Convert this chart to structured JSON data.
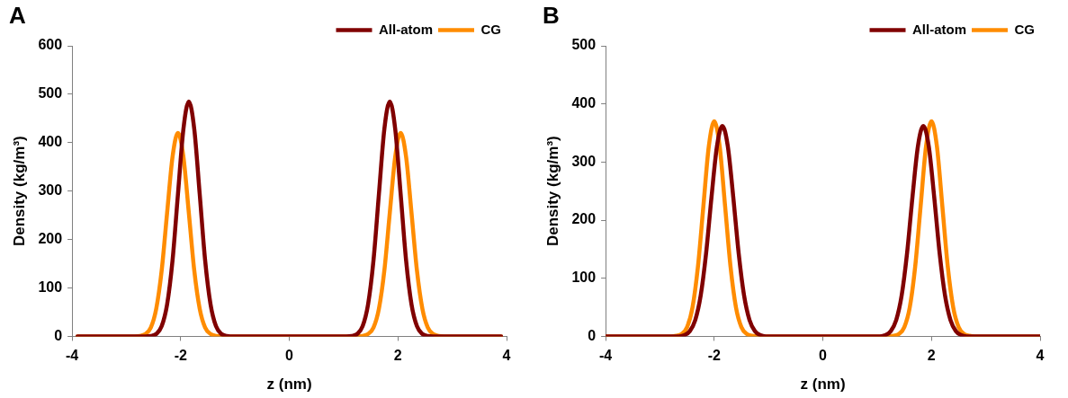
{
  "chart_data": [
    {
      "type": "line",
      "annotations": [
        "A"
      ],
      "xlabel": "z (nm)",
      "ylabel": "Density (kg/m³)",
      "xlim": [
        -4,
        4
      ],
      "xticks": [
        -4,
        -2,
        0,
        2,
        4
      ],
      "ylim": [
        0,
        600
      ],
      "yticks": [
        0,
        100,
        200,
        300,
        400,
        500,
        600
      ],
      "grid": false,
      "legend": "top right",
      "marker": "none",
      "line_style": "solid",
      "series": [
        {
          "name": "All-atom",
          "color": "#800000",
          "x": [
            -3.9,
            -2.65,
            -2.55,
            -2.45,
            -2.35,
            -2.25,
            -2.15,
            -2.05,
            -1.95,
            -1.85,
            -1.75,
            -1.65,
            -1.55,
            -1.45,
            -1.35,
            -1.25,
            -1.15,
            -1.05,
            0,
            1.05,
            1.15,
            1.25,
            1.35,
            1.45,
            1.55,
            1.65,
            1.75,
            1.85,
            1.95,
            2.05,
            2.15,
            2.25,
            2.35,
            2.45,
            2.55,
            2.65,
            3.9
          ],
          "values": [
            0,
            0,
            1,
            5,
            21,
            66,
            157,
            294,
            428,
            485,
            428,
            294,
            157,
            66,
            21,
            5,
            1,
            0,
            0,
            0,
            1,
            5,
            21,
            66,
            157,
            294,
            428,
            485,
            428,
            294,
            157,
            66,
            21,
            5,
            1,
            0,
            0
          ]
        },
        {
          "name": "CG",
          "color": "#ff8c00",
          "x": [
            -3.9,
            -2.85,
            -2.75,
            -2.65,
            -2.55,
            -2.45,
            -2.35,
            -2.25,
            -2.15,
            -2.05,
            -1.95,
            -1.85,
            -1.75,
            -1.65,
            -1.55,
            -1.45,
            -1.35,
            -1.25,
            0,
            1.25,
            1.35,
            1.45,
            1.55,
            1.65,
            1.75,
            1.85,
            1.95,
            2.05,
            2.15,
            2.25,
            2.35,
            2.45,
            2.55,
            2.65,
            2.75,
            2.85,
            3.9
          ],
          "values": [
            0,
            0,
            1,
            5,
            18,
            57,
            136,
            255,
            371,
            420,
            371,
            255,
            136,
            57,
            18,
            5,
            1,
            0,
            0,
            0,
            1,
            5,
            18,
            57,
            136,
            255,
            371,
            420,
            371,
            255,
            136,
            57,
            18,
            5,
            1,
            0,
            0
          ]
        }
      ]
    },
    {
      "type": "line",
      "annotations": [
        "B"
      ],
      "xlabel": "z (nm)",
      "ylabel": "Density (kg/m³)",
      "xlim": [
        -4,
        4
      ],
      "xticks": [
        -4,
        -2,
        0,
        2,
        4
      ],
      "ylim": [
        0,
        500
      ],
      "yticks": [
        0,
        100,
        200,
        300,
        400,
        500
      ],
      "grid": false,
      "legend": "top right",
      "marker": "none",
      "line_style": "solid",
      "series": [
        {
          "name": "All-atom",
          "color": "#800000",
          "x": [
            -4,
            -2.65,
            -2.55,
            -2.45,
            -2.35,
            -2.25,
            -2.15,
            -2.05,
            -1.95,
            -1.85,
            -1.75,
            -1.65,
            -1.55,
            -1.45,
            -1.35,
            -1.25,
            -1.15,
            -1.05,
            0,
            1.05,
            1.15,
            1.25,
            1.35,
            1.45,
            1.55,
            1.65,
            1.75,
            1.85,
            1.95,
            2.05,
            2.15,
            2.25,
            2.35,
            2.45,
            2.55,
            2.65,
            4
          ],
          "values": [
            0,
            0,
            2,
            9,
            28,
            70,
            143,
            240,
            327,
            362,
            327,
            240,
            143,
            70,
            28,
            9,
            2,
            0,
            0,
            0,
            2,
            9,
            28,
            70,
            143,
            240,
            327,
            362,
            327,
            240,
            143,
            70,
            28,
            9,
            2,
            0,
            0
          ]
        },
        {
          "name": "CG",
          "color": "#ff8c00",
          "x": [
            -4,
            -2.8,
            -2.7,
            -2.6,
            -2.5,
            -2.4,
            -2.3,
            -2.2,
            -2.1,
            -2.0,
            -1.9,
            -1.8,
            -1.7,
            -1.6,
            -1.5,
            -1.4,
            -1.3,
            -1.2,
            0,
            1.2,
            1.3,
            1.4,
            1.5,
            1.6,
            1.7,
            1.8,
            1.9,
            2.0,
            2.1,
            2.2,
            2.3,
            2.4,
            2.5,
            2.6,
            2.7,
            2.8,
            4
          ],
          "values": [
            0,
            0,
            1,
            4,
            16,
            50,
            120,
            224,
            327,
            370,
            327,
            224,
            120,
            50,
            16,
            4,
            1,
            0,
            0,
            0,
            1,
            4,
            16,
            50,
            120,
            224,
            327,
            370,
            327,
            224,
            120,
            50,
            16,
            4,
            1,
            0,
            0
          ]
        }
      ]
    }
  ]
}
